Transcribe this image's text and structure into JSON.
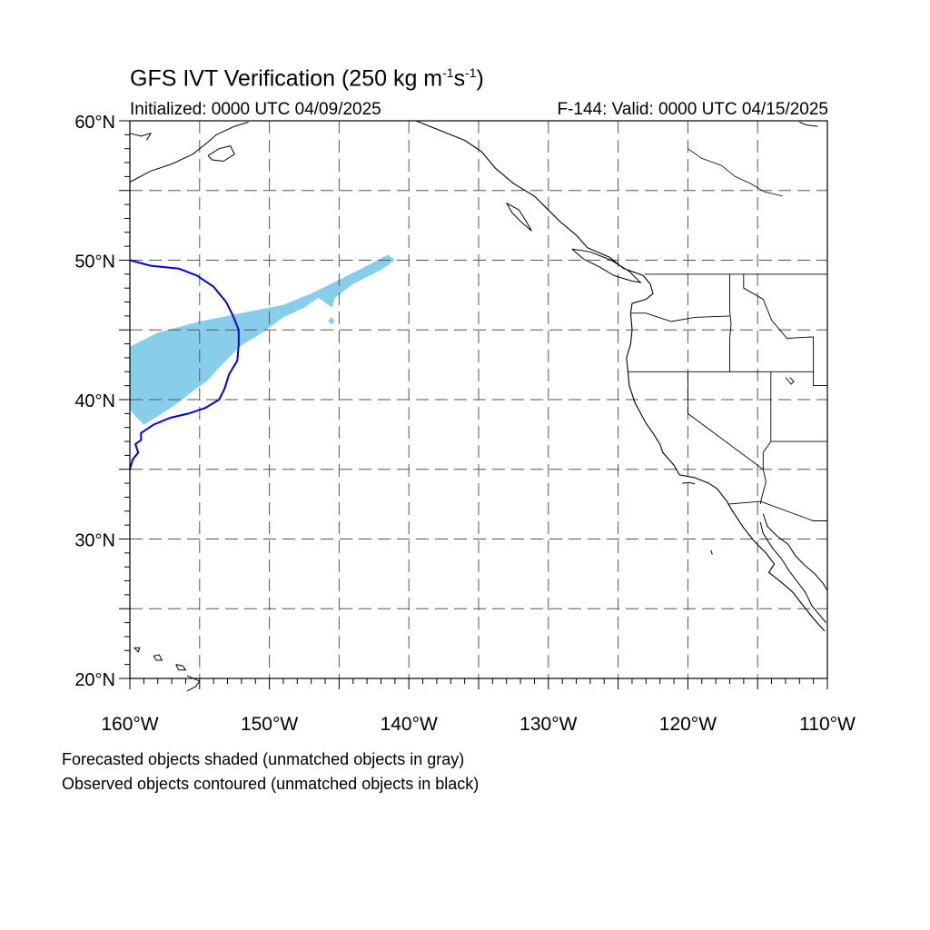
{
  "title": {
    "prefix": "GFS IVT Verification (250 kg m",
    "exp1": "-1",
    "mid": "s",
    "exp2": "-1",
    "suffix": ")"
  },
  "init_label": "Initialized: 0000 UTC 04/09/2025",
  "valid_label": "F-144: Valid: 0000 UTC 04/15/2025",
  "map": {
    "lon_range": [
      -160,
      -110
    ],
    "lat_range": [
      20,
      60
    ],
    "gridline_step_deg": 5,
    "gridline_style": "dashed",
    "lat_tick_labels": [
      {
        "lat": 60,
        "text": "60°N"
      },
      {
        "lat": 50,
        "text": "50°N"
      },
      {
        "lat": 40,
        "text": "40°N"
      },
      {
        "lat": 30,
        "text": "30°N"
      },
      {
        "lat": 20,
        "text": "20°N"
      }
    ],
    "lon_tick_labels": [
      {
        "lon": -160,
        "text": "160°W"
      },
      {
        "lon": -150,
        "text": "150°W"
      },
      {
        "lon": -140,
        "text": "140°W"
      },
      {
        "lon": -130,
        "text": "130°W"
      },
      {
        "lon": -120,
        "text": "120°W"
      },
      {
        "lon": -110,
        "text": "110°W"
      }
    ],
    "colors": {
      "forecast_fill": "#87ceeb",
      "observed_contour": "#0000dd",
      "coastline": "#000000",
      "gridline": "#555555"
    }
  },
  "forecast_object": {
    "description_hidden": false,
    "outline_lonlat": [
      [
        -160,
        43.8
      ],
      [
        -158,
        44.8
      ],
      [
        -155,
        45.6
      ],
      [
        -152,
        46.2
      ],
      [
        -149,
        46.8
      ],
      [
        -147,
        47.6
      ],
      [
        -145,
        48.6
      ],
      [
        -143,
        49.6
      ],
      [
        -141.5,
        50.4
      ],
      [
        -141,
        50.0
      ],
      [
        -142,
        49.3
      ],
      [
        -144,
        48.3
      ],
      [
        -145.3,
        47.3
      ],
      [
        -145.5,
        46.6
      ],
      [
        -146.5,
        47.3
      ],
      [
        -147.5,
        46.6
      ],
      [
        -149,
        45.9
      ],
      [
        -150.5,
        44.8
      ],
      [
        -152,
        43.9
      ],
      [
        -153.5,
        42.4
      ],
      [
        -154.5,
        41.3
      ],
      [
        -155.5,
        40.6
      ],
      [
        -156.5,
        39.8
      ],
      [
        -158,
        38.8
      ],
      [
        -159,
        38.2
      ],
      [
        -159.6,
        38.8
      ],
      [
        -160,
        39.3
      ]
    ]
  },
  "observed_object": {
    "contour_lonlat": [
      [
        -160,
        50.0
      ],
      [
        -158.5,
        49.6
      ],
      [
        -156.5,
        49.4
      ],
      [
        -155.2,
        48.9
      ],
      [
        -154.0,
        48.1
      ],
      [
        -153.1,
        47.0
      ],
      [
        -152.6,
        46.0
      ],
      [
        -152.2,
        45.0
      ],
      [
        -152.2,
        43.9
      ],
      [
        -152.3,
        42.8
      ],
      [
        -152.9,
        41.8
      ],
      [
        -153.2,
        40.8
      ],
      [
        -153.6,
        40.0
      ],
      [
        -154.6,
        39.4
      ],
      [
        -155.8,
        39.0
      ],
      [
        -157.1,
        38.7
      ],
      [
        -158.3,
        38.2
      ],
      [
        -159.2,
        37.6
      ],
      [
        -159.2,
        37.1
      ],
      [
        -159.6,
        36.8
      ],
      [
        -159.4,
        36.2
      ],
      [
        -159.8,
        35.7
      ],
      [
        -160,
        35.0
      ]
    ]
  },
  "footnotes": {
    "line1": "Forecasted objects shaded (unmatched objects in gray)",
    "line2": "Observed objects contoured (unmatched objects in black)"
  }
}
